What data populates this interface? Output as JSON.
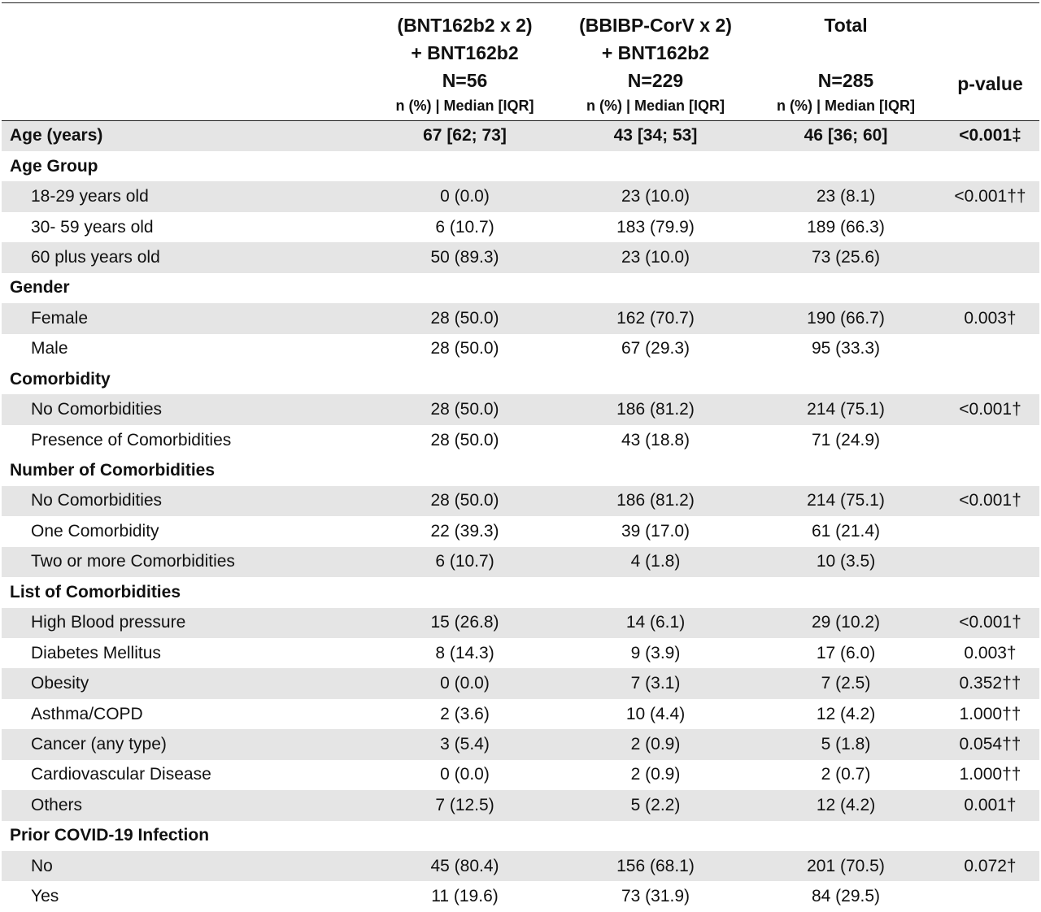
{
  "header": {
    "columns": [
      {
        "lines": [
          "(BNT162b2 x 2)",
          "+ BNT162b2",
          "N=56"
        ],
        "sub": "n (%) | Median [IQR]"
      },
      {
        "lines": [
          "(BBIBP-CorV x 2)",
          "+ BNT162b2",
          "N=229"
        ],
        "sub": "n (%) | Median [IQR]"
      },
      {
        "lines": [
          "Total",
          "",
          "N=285"
        ],
        "sub": "n (%) | Median [IQR]"
      }
    ],
    "pvalue_label": "p-value"
  },
  "rows": [
    {
      "label": "Age (years)",
      "level": "section",
      "shade": true,
      "c1": "67 [62; 73]",
      "c2": "43 [34; 53]",
      "c3": "46 [36; 60]",
      "p": "<0.001‡"
    },
    {
      "label": "Age Group",
      "level": "section",
      "shade": false,
      "c1": "",
      "c2": "",
      "c3": "",
      "p": ""
    },
    {
      "label": "18-29 years old",
      "level": "sub",
      "shade": true,
      "c1": "0 (0.0)",
      "c2": "23 (10.0)",
      "c3": "23 (8.1)",
      "p": "<0.001††"
    },
    {
      "label": "30- 59 years old",
      "level": "sub",
      "shade": false,
      "c1": "6 (10.7)",
      "c2": "183 (79.9)",
      "c3": "189 (66.3)",
      "p": ""
    },
    {
      "label": "60 plus years old",
      "level": "sub",
      "shade": true,
      "c1": "50 (89.3)",
      "c2": "23 (10.0)",
      "c3": "73 (25.6)",
      "p": ""
    },
    {
      "label": "Gender",
      "level": "section",
      "shade": false,
      "c1": "",
      "c2": "",
      "c3": "",
      "p": ""
    },
    {
      "label": "Female",
      "level": "sub",
      "shade": true,
      "c1": "28 (50.0)",
      "c2": "162 (70.7)",
      "c3": "190 (66.7)",
      "p": "0.003†"
    },
    {
      "label": "Male",
      "level": "sub",
      "shade": false,
      "c1": "28 (50.0)",
      "c2": "67 (29.3)",
      "c3": "95 (33.3)",
      "p": ""
    },
    {
      "label": "Comorbidity",
      "level": "section",
      "shade": false,
      "c1": "",
      "c2": "",
      "c3": "",
      "p": ""
    },
    {
      "label": "No Comorbidities",
      "level": "sub",
      "shade": true,
      "c1": "28 (50.0)",
      "c2": "186 (81.2)",
      "c3": "214 (75.1)",
      "p": "<0.001†"
    },
    {
      "label": "Presence of Comorbidities",
      "level": "sub",
      "shade": false,
      "c1": "28 (50.0)",
      "c2": "43 (18.8)",
      "c3": "71 (24.9)",
      "p": ""
    },
    {
      "label": "Number of Comorbidities",
      "level": "section",
      "shade": false,
      "c1": "",
      "c2": "",
      "c3": "",
      "p": ""
    },
    {
      "label": "No Comorbidities",
      "level": "sub",
      "shade": true,
      "c1": "28 (50.0)",
      "c2": "186 (81.2)",
      "c3": "214 (75.1)",
      "p": "<0.001†"
    },
    {
      "label": "One Comorbidity",
      "level": "sub",
      "shade": false,
      "c1": "22 (39.3)",
      "c2": "39 (17.0)",
      "c3": "61 (21.4)",
      "p": ""
    },
    {
      "label": "Two or more Comorbidities",
      "level": "sub",
      "shade": true,
      "c1": "6 (10.7)",
      "c2": "4 (1.8)",
      "c3": "10 (3.5)",
      "p": ""
    },
    {
      "label": "List of Comorbidities",
      "level": "section",
      "shade": false,
      "c1": "",
      "c2": "",
      "c3": "",
      "p": ""
    },
    {
      "label": "High Blood pressure",
      "level": "sub",
      "shade": true,
      "c1": "15 (26.8)",
      "c2": "14 (6.1)",
      "c3": "29 (10.2)",
      "p": "<0.001†"
    },
    {
      "label": "Diabetes Mellitus",
      "level": "sub",
      "shade": false,
      "c1": "8 (14.3)",
      "c2": "9 (3.9)",
      "c3": "17 (6.0)",
      "p": "0.003†"
    },
    {
      "label": "Obesity",
      "level": "sub",
      "shade": true,
      "c1": "0 (0.0)",
      "c2": "7 (3.1)",
      "c3": "7 (2.5)",
      "p": "0.352††"
    },
    {
      "label": "Asthma/COPD",
      "level": "sub",
      "shade": false,
      "c1": "2 (3.6)",
      "c2": "10 (4.4)",
      "c3": "12 (4.2)",
      "p": "1.000††"
    },
    {
      "label": "Cancer (any type)",
      "level": "sub",
      "shade": true,
      "c1": "3 (5.4)",
      "c2": "2 (0.9)",
      "c3": "5 (1.8)",
      "p": "0.054††"
    },
    {
      "label": "Cardiovascular Disease",
      "level": "sub",
      "shade": false,
      "c1": "0 (0.0)",
      "c2": "2 (0.9)",
      "c3": "2 (0.7)",
      "p": "1.000††"
    },
    {
      "label": "Others",
      "level": "sub",
      "shade": true,
      "c1": "7 (12.5)",
      "c2": "5 (2.2)",
      "c3": "12 (4.2)",
      "p": "0.001†"
    },
    {
      "label": "Prior COVID-19 Infection",
      "level": "section",
      "shade": false,
      "c1": "",
      "c2": "",
      "c3": "",
      "p": ""
    },
    {
      "label": "No",
      "level": "sub",
      "shade": true,
      "c1": "45 (80.4)",
      "c2": "156 (68.1)",
      "c3": "201 (70.5)",
      "p": "0.072†"
    },
    {
      "label": "Yes",
      "level": "sub",
      "shade": false,
      "c1": "11 (19.6)",
      "c2": "73 (31.9)",
      "c3": "84 (29.5)",
      "p": ""
    }
  ]
}
